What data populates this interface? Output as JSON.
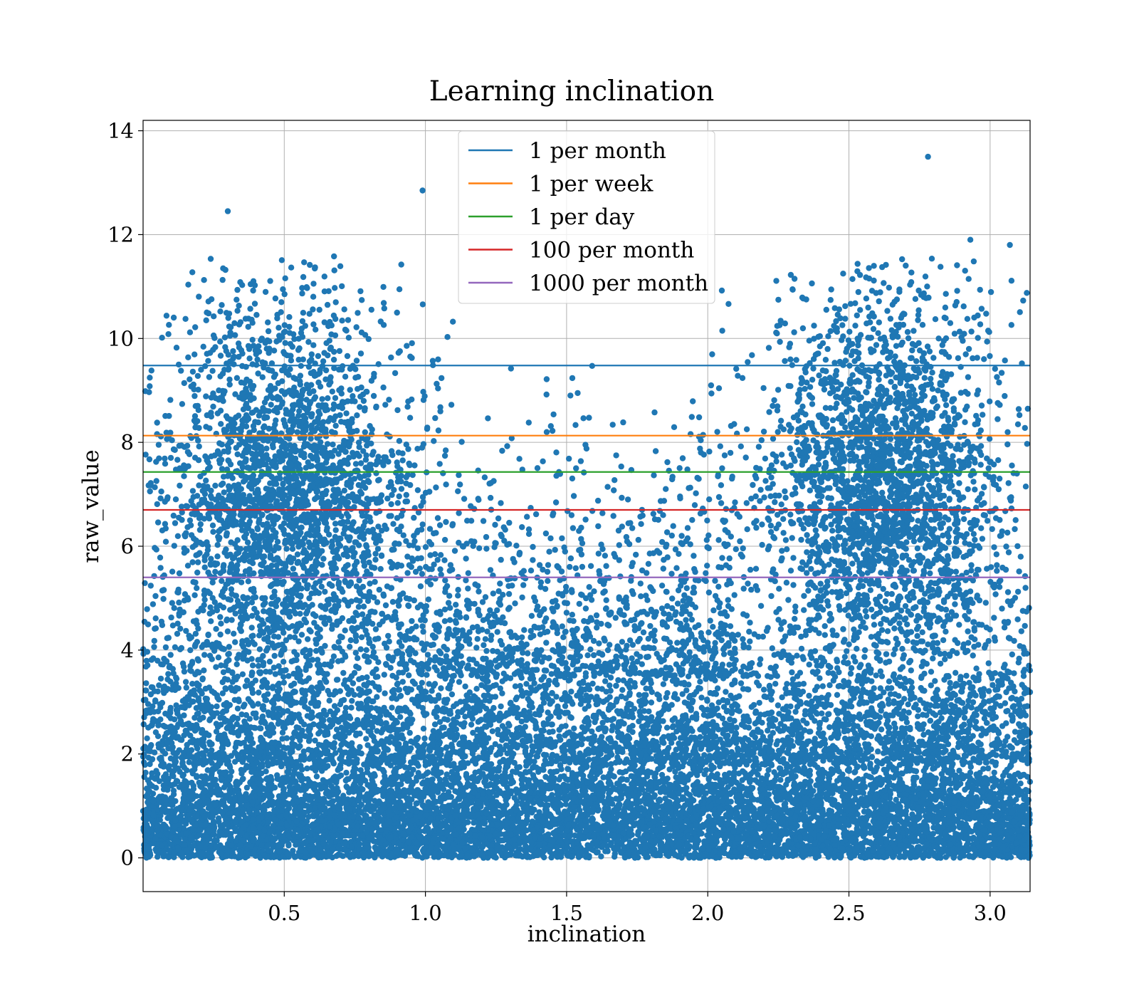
{
  "chart_data": {
    "type": "scatter",
    "title": "Learning inclination",
    "xlabel": "inclination",
    "ylabel": "raw_value",
    "xlim": [
      0.0,
      3.1416
    ],
    "ylim": [
      -0.65,
      14.2
    ],
    "xticks": [
      0.5,
      1.0,
      1.5,
      2.0,
      2.5,
      3.0
    ],
    "xtick_labels": [
      "0.5",
      "1.0",
      "1.5",
      "2.0",
      "2.5",
      "3.0"
    ],
    "yticks": [
      0,
      2,
      4,
      6,
      8,
      10,
      12,
      14
    ],
    "ytick_labels": [
      "0",
      "2",
      "4",
      "6",
      "8",
      "10",
      "12",
      "14"
    ],
    "grid": true,
    "legend_position": "top-center",
    "scatter": {
      "color": "#1f77b4",
      "description": "dense cloud of ~30000 points; concentrated near 0–2 across all inclinations, with two high-value lobes around inclination 0.5 and 2.6",
      "notable_points": [
        {
          "x": 0.3,
          "y": 12.45
        },
        {
          "x": 0.99,
          "y": 12.85
        },
        {
          "x": 2.78,
          "y": 13.5
        },
        {
          "x": 2.93,
          "y": 11.9
        },
        {
          "x": 3.07,
          "y": 11.8
        }
      ]
    },
    "series": [
      {
        "name": "1 per month",
        "y": 9.48,
        "color": "#1f77b4"
      },
      {
        "name": "1 per week",
        "y": 8.13,
        "color": "#ff7f0e"
      },
      {
        "name": "1 per day",
        "y": 7.43,
        "color": "#2ca02c"
      },
      {
        "name": "100 per month",
        "y": 6.7,
        "color": "#d62728"
      },
      {
        "name": "1000 per month",
        "y": 5.4,
        "color": "#9467bd"
      }
    ]
  }
}
